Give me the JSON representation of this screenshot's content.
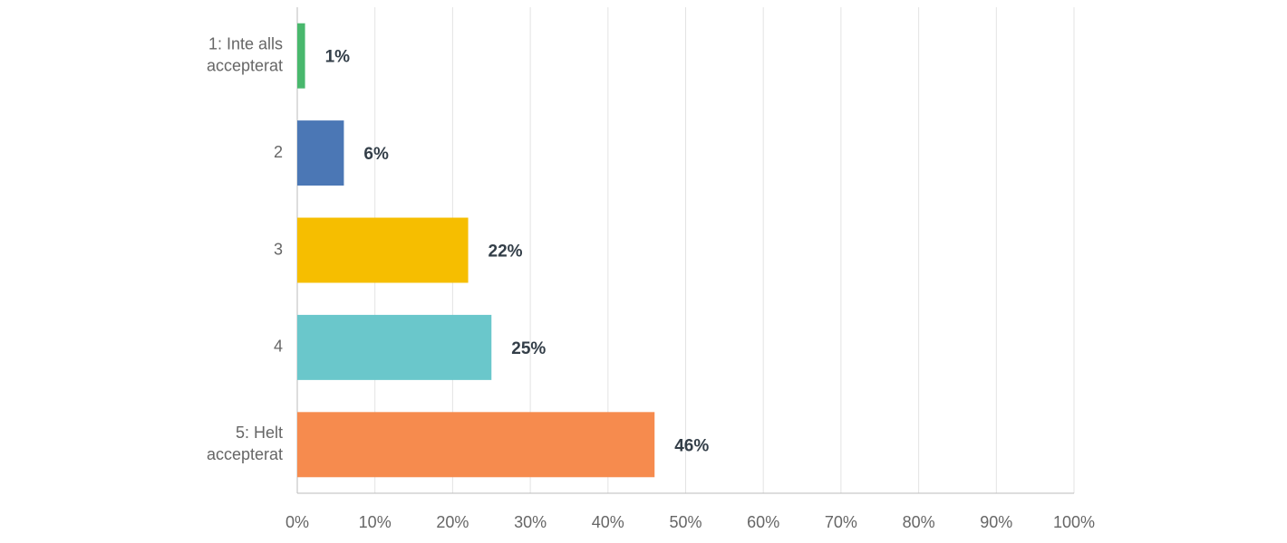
{
  "chart_data": {
    "type": "hbar",
    "categories": [
      [
        "1: Inte alls",
        "accepterat"
      ],
      [
        "2"
      ],
      [
        "3"
      ],
      [
        "4"
      ],
      [
        "5: Helt",
        "accepterat"
      ]
    ],
    "values": [
      1,
      6,
      22,
      25,
      46
    ],
    "value_labels": [
      "1%",
      "6%",
      "22%",
      "25%",
      "46%"
    ],
    "colors": [
      "#49b86d",
      "#4b77b5",
      "#f6be00",
      "#6ac7cb",
      "#f68b4e"
    ],
    "xlim": [
      0,
      100
    ],
    "xticks": [
      {
        "value": 0,
        "label": "0%"
      },
      {
        "value": 10,
        "label": "10%"
      },
      {
        "value": 20,
        "label": "20%"
      },
      {
        "value": 30,
        "label": "30%"
      },
      {
        "value": 40,
        "label": "40%"
      },
      {
        "value": 50,
        "label": "50%"
      },
      {
        "value": 60,
        "label": "60%"
      },
      {
        "value": 70,
        "label": "70%"
      },
      {
        "value": 80,
        "label": "80%"
      },
      {
        "value": 90,
        "label": "90%"
      },
      {
        "value": 100,
        "label": "100%"
      }
    ],
    "grid": true
  }
}
